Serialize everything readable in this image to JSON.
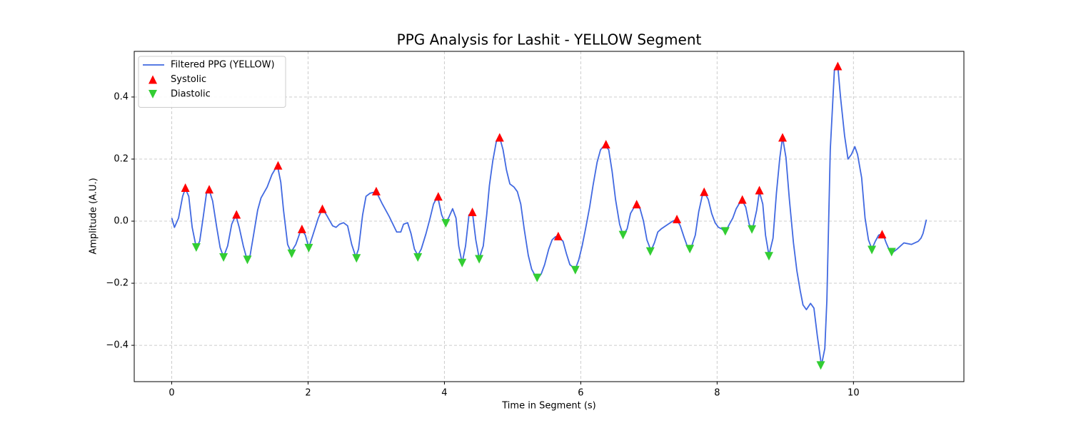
{
  "chart_data": {
    "type": "line",
    "title": "PPG Analysis for Lashit - YELLOW Segment",
    "x_label": "Time in Segment (s)",
    "y_label": "Amplitude (A.U.)",
    "xlim": [
      -0.55,
      11.62
    ],
    "ylim": [
      -0.517,
      0.547
    ],
    "xticks": [
      0,
      2,
      4,
      6,
      8,
      10
    ],
    "yticks": [
      {
        "value": -0.4,
        "label": "−0.4"
      },
      {
        "value": -0.2,
        "label": "−0.2"
      },
      {
        "value": 0,
        "label": "0.0"
      },
      0.2,
      0.4
    ],
    "grid": true,
    "legend": "upper left",
    "series": [
      {
        "name": "Filtered PPG (YELLOW)",
        "type": "line",
        "color": "#4169e1",
        "x": [
          0,
          0.04,
          0.1,
          0.16,
          0.2,
          0.25,
          0.3,
          0.36,
          0.41,
          0.46,
          0.51,
          0.55,
          0.6,
          0.66,
          0.71,
          0.76,
          0.82,
          0.88,
          0.94,
          0.99,
          1.05,
          1.1,
          1.15,
          1.2,
          1.26,
          1.31,
          1.4,
          1.47,
          1.55,
          1.6,
          1.64,
          1.7,
          1.75,
          1.82,
          1.9,
          1.96,
          2.01,
          2.07,
          2.15,
          2.21,
          2.27,
          2.36,
          2.41,
          2.46,
          2.52,
          2.58,
          2.64,
          2.7,
          2.74,
          2.8,
          2.85,
          2.91,
          3.0,
          3.09,
          3.19,
          3.3,
          3.36,
          3.4,
          3.46,
          3.51,
          3.56,
          3.61,
          3.66,
          3.73,
          3.79,
          3.84,
          3.9,
          3.96,
          4.01,
          4.06,
          4.12,
          4.17,
          4.21,
          4.26,
          4.31,
          4.36,
          4.41,
          4.46,
          4.51,
          4.57,
          4.62,
          4.66,
          4.71,
          4.76,
          4.81,
          4.86,
          4.91,
          4.96,
          5.02,
          5.07,
          5.12,
          5.17,
          5.23,
          5.28,
          5.33,
          5.37,
          5.42,
          5.47,
          5.53,
          5.58,
          5.63,
          5.67,
          5.74,
          5.79,
          5.84,
          5.92,
          5.97,
          6.02,
          6.07,
          6.13,
          6.18,
          6.24,
          6.29,
          6.35,
          6.41,
          6.46,
          6.51,
          6.57,
          6.62,
          6.68,
          6.73,
          6.81,
          6.87,
          6.92,
          6.97,
          7.03,
          7.08,
          7.13,
          7.18,
          7.28,
          7.35,
          7.41,
          7.46,
          7.52,
          7.57,
          7.62,
          7.68,
          7.73,
          7.78,
          7.82,
          7.87,
          7.92,
          7.97,
          8.02,
          8.07,
          8.12,
          8.18,
          8.23,
          8.28,
          8.36,
          8.42,
          8.47,
          8.52,
          8.58,
          8.62,
          8.67,
          8.71,
          8.76,
          8.82,
          8.87,
          8.92,
          8.96,
          9.01,
          9.06,
          9.12,
          9.17,
          9.22,
          9.26,
          9.31,
          9.37,
          9.42,
          9.47,
          9.53,
          9.58,
          9.61,
          9.66,
          9.72,
          9.77,
          9.81,
          9.87,
          9.92,
          9.97,
          10.02,
          10.06,
          10.12,
          10.17,
          10.22,
          10.27,
          10.32,
          10.37,
          10.43,
          10.48,
          10.53,
          10.58,
          10.64,
          10.69,
          10.74,
          10.85,
          10.95,
          10.99,
          11.02,
          11.07
        ],
        "values": [
          0.01,
          -0.02,
          0.01,
          0.08,
          0.105,
          0.08,
          -0.02,
          -0.085,
          -0.065,
          0.01,
          0.09,
          0.1,
          0.065,
          -0.02,
          -0.085,
          -0.115,
          -0.08,
          -0.01,
          0.02,
          -0.02,
          -0.08,
          -0.12,
          -0.11,
          -0.045,
          0.035,
          0.075,
          0.11,
          0.15,
          0.18,
          0.125,
          0.035,
          -0.075,
          -0.1,
          -0.075,
          -0.025,
          -0.045,
          -0.085,
          -0.045,
          0.01,
          0.04,
          0.02,
          -0.015,
          -0.02,
          -0.01,
          -0.005,
          -0.015,
          -0.075,
          -0.115,
          -0.09,
          0.02,
          0.08,
          0.09,
          0.095,
          0.055,
          0.015,
          -0.035,
          -0.035,
          -0.01,
          -0.005,
          -0.04,
          -0.09,
          -0.11,
          -0.09,
          -0.04,
          0.01,
          0.055,
          0.08,
          0.02,
          -0.005,
          0.01,
          0.04,
          0.01,
          -0.08,
          -0.135,
          -0.08,
          0.02,
          0.03,
          -0.06,
          -0.12,
          -0.08,
          0.02,
          0.115,
          0.195,
          0.255,
          0.27,
          0.23,
          0.165,
          0.12,
          0.11,
          0.095,
          0.055,
          -0.025,
          -0.11,
          -0.155,
          -0.175,
          -0.185,
          -0.17,
          -0.14,
          -0.09,
          -0.06,
          -0.05,
          -0.05,
          -0.065,
          -0.105,
          -0.14,
          -0.155,
          -0.125,
          -0.08,
          -0.025,
          0.045,
          0.115,
          0.19,
          0.23,
          0.245,
          0.23,
          0.16,
          0.07,
          -0.01,
          -0.045,
          -0.025,
          0.025,
          0.055,
          0.04,
          0,
          -0.06,
          -0.095,
          -0.07,
          -0.035,
          -0.025,
          -0.01,
          0,
          0.005,
          -0.015,
          -0.055,
          -0.085,
          -0.085,
          -0.045,
          0.03,
          0.08,
          0.09,
          0.07,
          0.025,
          -0.005,
          -0.02,
          -0.025,
          -0.035,
          -0.01,
          0.01,
          0.04,
          0.07,
          0.045,
          -0.01,
          -0.025,
          0.035,
          0.095,
          0.055,
          -0.045,
          -0.11,
          -0.055,
          0.09,
          0.205,
          0.27,
          0.205,
          0.07,
          -0.07,
          -0.16,
          -0.225,
          -0.27,
          -0.285,
          -0.265,
          -0.28,
          -0.37,
          -0.465,
          -0.41,
          -0.255,
          0.23,
          0.485,
          0.5,
          0.4,
          0.275,
          0.2,
          0.215,
          0.24,
          0.215,
          0.14,
          0.01,
          -0.06,
          -0.09,
          -0.065,
          -0.045,
          -0.04,
          -0.07,
          -0.095,
          -0.1,
          -0.09,
          -0.08,
          -0.07,
          -0.075,
          -0.065,
          -0.055,
          -0.04,
          0.005
        ]
      },
      {
        "name": "Systolic",
        "type": "scatter",
        "marker": "triangle-up",
        "color": "#ff0000",
        "x": [
          0.2,
          0.55,
          0.95,
          1.56,
          1.91,
          2.21,
          3.0,
          3.91,
          4.41,
          4.81,
          5.67,
          6.37,
          6.82,
          7.41,
          7.81,
          8.37,
          8.62,
          8.96,
          9.77,
          10.42
        ],
        "values": [
          0.108,
          0.103,
          0.022,
          0.18,
          -0.025,
          0.04,
          0.097,
          0.08,
          0.03,
          0.27,
          -0.048,
          0.248,
          0.055,
          0.007,
          0.095,
          0.07,
          0.1,
          0.27,
          0.5,
          -0.042
        ]
      },
      {
        "name": "Diastolic",
        "type": "scatter",
        "marker": "triangle-down",
        "color": "#32cd32",
        "x": [
          0.36,
          0.76,
          1.11,
          1.76,
          2.01,
          2.71,
          3.61,
          4.02,
          4.26,
          4.51,
          5.36,
          5.92,
          6.62,
          7.02,
          7.6,
          8.12,
          8.51,
          8.76,
          9.52,
          10.27,
          10.56
        ],
        "values": [
          -0.085,
          -0.117,
          -0.125,
          -0.105,
          -0.087,
          -0.12,
          -0.117,
          -0.007,
          -0.135,
          -0.123,
          -0.183,
          -0.158,
          -0.045,
          -0.098,
          -0.09,
          -0.033,
          -0.027,
          -0.113,
          -0.465,
          -0.093,
          -0.1
        ]
      }
    ]
  }
}
